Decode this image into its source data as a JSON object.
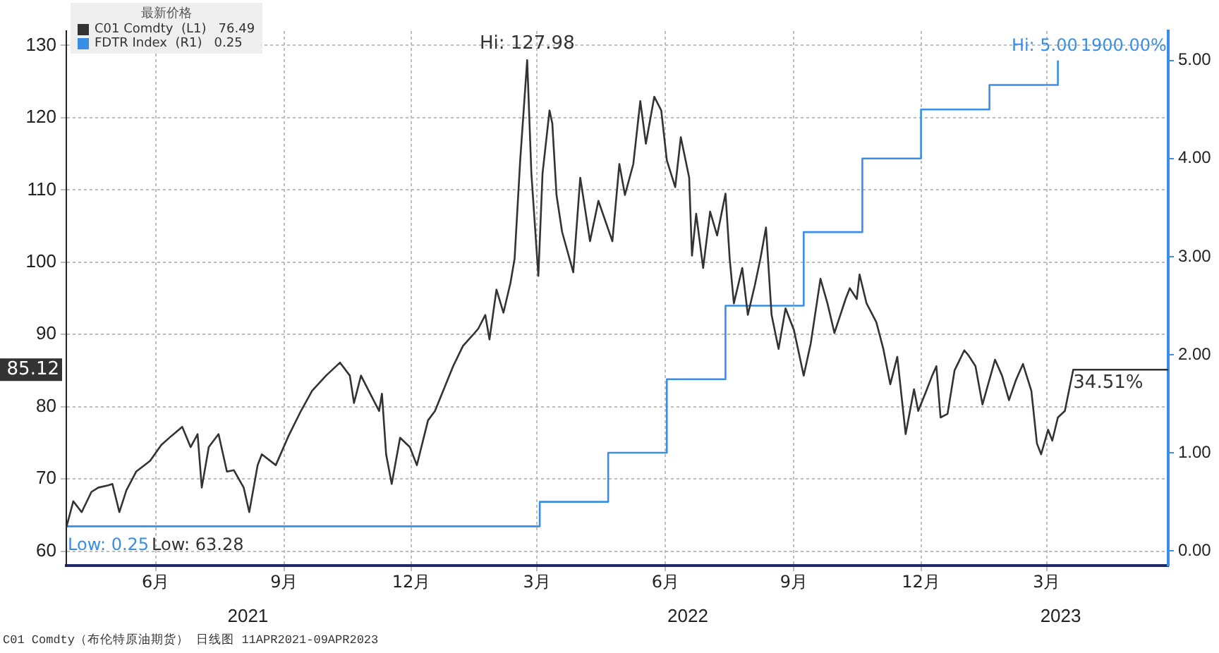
{
  "chart_data": {
    "type": "line",
    "legend_title": "最新价格",
    "legend": "top left",
    "grid": true,
    "xlim": [
      "2021-04-12",
      "2023-06-10"
    ],
    "xticks": [
      {
        "value": "2021-06-15",
        "label": "6月"
      },
      {
        "value": "2021-09-15",
        "label": "9月"
      },
      {
        "value": "2021-12-15",
        "label": "12月"
      },
      {
        "value": "2022-03-15",
        "label": "3月"
      },
      {
        "value": "2022-06-15",
        "label": "6月"
      },
      {
        "value": "2022-09-15",
        "label": "9月"
      },
      {
        "value": "2022-12-15",
        "label": "12月"
      },
      {
        "value": "2023-03-15",
        "label": "3月"
      }
    ],
    "x2lim": [
      "2021-04-12",
      "2023-06-10"
    ],
    "x2ticks": [
      {
        "value": "2021-08-20",
        "label": "2021"
      },
      {
        "value": "2022-07-01",
        "label": "2022"
      },
      {
        "value": "2023-03-25",
        "label": "2023"
      }
    ],
    "ylim": [
      58,
      132
    ],
    "yticks": [
      60,
      70,
      80,
      90,
      100,
      110,
      120,
      130
    ],
    "y2lim": [
      -0.15,
      5.3
    ],
    "y2ticks": [
      {
        "value": 0,
        "label": "0.00"
      },
      {
        "value": 1,
        "label": "1.00"
      },
      {
        "value": 2,
        "label": "2.00"
      },
      {
        "value": 3,
        "label": "3.00"
      },
      {
        "value": 4,
        "label": "4.00"
      },
      {
        "value": 5,
        "label": "5.00"
      }
    ],
    "series": [
      {
        "name": "C01 Comdty  (L1)   76.49",
        "color": "#333333",
        "x": [
          "2021-04-12",
          "2021-04-17",
          "2021-04-23",
          "2021-04-30",
          "2021-05-05",
          "2021-05-12",
          "2021-05-15",
          "2021-05-20",
          "2021-05-25",
          "2021-06-01",
          "2021-06-11",
          "2021-06-19",
          "2021-06-26",
          "2021-07-04",
          "2021-07-10",
          "2021-07-15",
          "2021-07-18",
          "2021-07-23",
          "2021-07-30",
          "2021-08-05",
          "2021-08-10",
          "2021-08-17",
          "2021-08-21",
          "2021-08-27",
          "2021-08-30",
          "2021-09-09",
          "2021-09-18",
          "2021-09-27",
          "2021-10-05",
          "2021-10-15",
          "2021-10-25",
          "2021-11-01",
          "2021-11-04",
          "2021-11-09",
          "2021-11-14",
          "2021-11-22",
          "2021-11-24",
          "2021-11-27",
          "2021-12-01",
          "2021-12-07",
          "2021-12-14",
          "2021-12-19",
          "2021-12-27",
          "2022-01-01",
          "2022-01-06",
          "2022-01-14",
          "2022-01-21",
          "2022-01-28",
          "2022-02-01",
          "2022-02-06",
          "2022-02-09",
          "2022-02-14",
          "2022-02-19",
          "2022-02-24",
          "2022-02-27",
          "2022-03-03",
          "2022-03-08",
          "2022-03-11",
          "2022-03-16",
          "2022-03-19",
          "2022-03-24",
          "2022-03-26",
          "2022-03-29",
          "2022-04-02",
          "2022-04-10",
          "2022-04-15",
          "2022-04-22",
          "2022-04-28",
          "2022-05-08",
          "2022-05-13",
          "2022-05-17",
          "2022-05-23",
          "2022-05-28",
          "2022-06-01",
          "2022-06-07",
          "2022-06-12",
          "2022-06-16",
          "2022-06-22",
          "2022-06-26",
          "2022-07-02",
          "2022-07-04",
          "2022-07-07",
          "2022-07-12",
          "2022-07-17",
          "2022-07-22",
          "2022-07-28",
          "2022-07-31",
          "2022-08-03",
          "2022-08-09",
          "2022-08-13",
          "2022-08-18",
          "2022-08-22",
          "2022-08-26",
          "2022-08-30",
          "2022-09-04",
          "2022-09-09",
          "2022-09-15",
          "2022-09-22",
          "2022-09-27",
          "2022-10-04",
          "2022-10-09",
          "2022-10-14",
          "2022-10-22",
          "2022-10-25",
          "2022-10-30",
          "2022-11-01",
          "2022-11-06",
          "2022-11-13",
          "2022-11-18",
          "2022-11-23",
          "2022-11-28",
          "2022-12-04",
          "2022-12-10",
          "2022-12-13",
          "2022-12-18",
          "2022-12-23",
          "2022-12-26",
          "2022-12-29",
          "2023-01-03",
          "2023-01-08",
          "2023-01-15",
          "2023-01-18",
          "2023-01-23",
          "2023-01-28",
          "2023-02-06",
          "2023-02-11",
          "2023-02-16",
          "2023-02-21",
          "2023-02-26",
          "2023-03-04",
          "2023-03-08",
          "2023-03-11",
          "2023-03-16",
          "2023-03-19",
          "2023-03-23",
          "2023-03-28",
          "2023-04-03",
          "2023-06-10"
        ],
        "values": [
          63.28,
          66.9,
          65.4,
          68.2,
          68.8,
          69.1,
          69.3,
          65.4,
          68.4,
          71.0,
          72.5,
          74.7,
          75.9,
          77.2,
          74.4,
          76.2,
          68.8,
          74.4,
          76.2,
          71.0,
          71.2,
          68.8,
          65.4,
          71.9,
          73.4,
          71.9,
          75.9,
          79.4,
          82.2,
          84.3,
          86.1,
          84.3,
          80.5,
          84.3,
          82.4,
          79.4,
          81.8,
          73.4,
          69.3,
          75.7,
          74.4,
          71.9,
          78.1,
          79.4,
          81.8,
          85.6,
          88.4,
          89.9,
          90.8,
          92.7,
          89.3,
          96.2,
          93.0,
          97.1,
          100.5,
          114.1,
          127.98,
          112.3,
          98.1,
          112.3,
          121.0,
          119.2,
          109.3,
          104.2,
          98.6,
          111.7,
          102.9,
          108.5,
          102.9,
          113.6,
          109.3,
          113.6,
          122.3,
          116.4,
          122.9,
          121.0,
          114.1,
          110.4,
          117.3,
          111.7,
          100.9,
          106.7,
          99.2,
          107.0,
          103.7,
          109.5,
          100.5,
          94.3,
          99.2,
          92.7,
          96.8,
          100.5,
          104.8,
          92.7,
          88.0,
          93.6,
          90.6,
          84.3,
          88.7,
          97.7,
          94.3,
          90.2,
          94.9,
          96.4,
          94.9,
          98.3,
          94.3,
          91.7,
          88.0,
          83.1,
          86.9,
          76.2,
          82.4,
          79.4,
          81.8,
          84.3,
          85.6,
          78.5,
          79.0,
          85.0,
          87.8,
          87.1,
          85.6,
          80.3,
          86.5,
          84.3,
          80.9,
          83.7,
          85.9,
          82.2,
          74.9,
          73.4,
          76.8,
          75.3,
          78.5,
          79.4,
          85.12,
          85.12
        ]
      },
      {
        "name": "FDTR Index  (R1)   0.25",
        "color": "#3a8ee6",
        "type": "step",
        "axis": "y2",
        "x": [
          "2021-04-12",
          "2022-03-17",
          "2022-05-05",
          "2022-06-16",
          "2022-07-28",
          "2022-09-22",
          "2022-11-03",
          "2022-12-15",
          "2023-02-02",
          "2023-03-23"
        ],
        "values": [
          0.25,
          0.5,
          1.0,
          1.75,
          2.5,
          3.25,
          4.0,
          4.5,
          4.75,
          5.0
        ]
      }
    ],
    "annotations": [
      {
        "text": "Hi: 127.98",
        "x": "2022-03-08",
        "y": 127.98
      },
      {
        "text": "34.51%",
        "x": "2023-04-28",
        "y": 85.12
      },
      "Low: 0.25",
      "Low: 63.28",
      "Hi: 5.00",
      "1900.00%",
      "85.12",
      "C01 Comdty（布伦特原油期货） 日线图 11APR2021-09APR2023"
    ]
  }
}
